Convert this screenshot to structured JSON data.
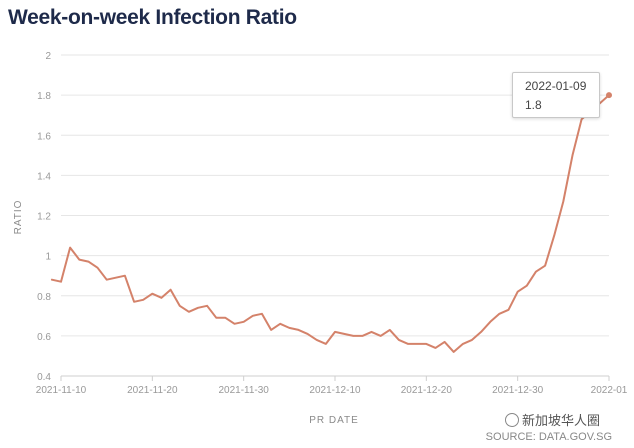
{
  "title": "Week-on-week Infection Ratio",
  "tooltip": {
    "date": "2022-01-09",
    "value": "1.8"
  },
  "watermark": "新加坡华人圈",
  "source": "SOURCE: DATA.GOV.SG",
  "colors": {
    "line": "#d4826a",
    "grid": "#e6e6e6",
    "title": "#1e2a4a"
  },
  "chart_data": {
    "type": "line",
    "title": "Week-on-week Infection Ratio",
    "xlabel": "PR DATE",
    "ylabel": "RATIO",
    "ylim": [
      0.4,
      2
    ],
    "yticks": [
      0.4,
      0.6,
      0.8,
      1,
      1.2,
      1.4,
      1.6,
      1.8,
      2
    ],
    "ytick_labels": [
      "0.4",
      "0.6",
      "0.8",
      "1",
      "1.2",
      "1.4",
      "1.6",
      "1.8",
      "2"
    ],
    "xrange": [
      "2021-11-10",
      "2022-01-09"
    ],
    "xticks": [
      "2021-11-10",
      "2021-11-20",
      "2021-11-30",
      "2021-12-10",
      "2021-12-20",
      "2021-12-30",
      "2022-01-09"
    ],
    "xtick_labels": [
      "2021-11-10",
      "2021-11-20",
      "2021-11-30",
      "2021-12-10",
      "2021-12-20",
      "2021-12-30",
      "2022-01"
    ],
    "grid": "horizontal",
    "series": [
      {
        "x": [
          "2021-11-09",
          "2021-11-10",
          "2021-11-11",
          "2021-11-12",
          "2021-11-13",
          "2021-11-14",
          "2021-11-15",
          "2021-11-16",
          "2021-11-17",
          "2021-11-18",
          "2021-11-19",
          "2021-11-20",
          "2021-11-21",
          "2021-11-22",
          "2021-11-23",
          "2021-11-24",
          "2021-11-25",
          "2021-11-26",
          "2021-11-27",
          "2021-11-28",
          "2021-11-29",
          "2021-11-30",
          "2021-12-01",
          "2021-12-02",
          "2021-12-03",
          "2021-12-04",
          "2021-12-05",
          "2021-12-06",
          "2021-12-07",
          "2021-12-08",
          "2021-12-09",
          "2021-12-10",
          "2021-12-11",
          "2021-12-12",
          "2021-12-13",
          "2021-12-14",
          "2021-12-15",
          "2021-12-16",
          "2021-12-17",
          "2021-12-18",
          "2021-12-19",
          "2021-12-20",
          "2021-12-21",
          "2021-12-22",
          "2021-12-23",
          "2021-12-24",
          "2021-12-25",
          "2021-12-26",
          "2021-12-27",
          "2021-12-28",
          "2021-12-29",
          "2021-12-30",
          "2021-12-31",
          "2022-01-01",
          "2022-01-02",
          "2022-01-03",
          "2022-01-04",
          "2022-01-05",
          "2022-01-06",
          "2022-01-07",
          "2022-01-08",
          "2022-01-09"
        ],
        "values": [
          0.88,
          0.87,
          1.04,
          0.98,
          0.97,
          0.94,
          0.88,
          0.89,
          0.9,
          0.77,
          0.78,
          0.81,
          0.79,
          0.83,
          0.75,
          0.72,
          0.74,
          0.75,
          0.69,
          0.69,
          0.66,
          0.67,
          0.7,
          0.71,
          0.63,
          0.66,
          0.64,
          0.63,
          0.61,
          0.58,
          0.56,
          0.62,
          0.61,
          0.6,
          0.6,
          0.62,
          0.6,
          0.63,
          0.58,
          0.56,
          0.56,
          0.56,
          0.54,
          0.57,
          0.52,
          0.56,
          0.58,
          0.62,
          0.67,
          0.71,
          0.73,
          0.82,
          0.85,
          0.92,
          0.95,
          1.1,
          1.27,
          1.5,
          1.68,
          1.72,
          1.76,
          1.8
        ]
      }
    ]
  }
}
